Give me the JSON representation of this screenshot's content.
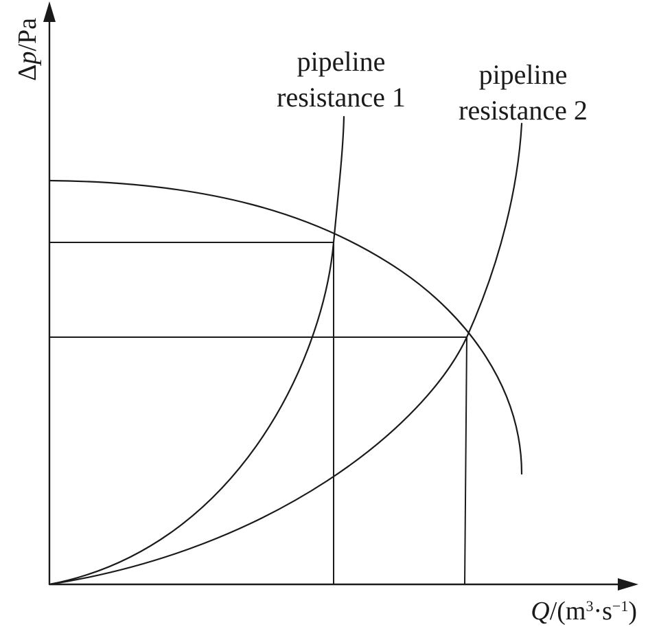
{
  "axes": {
    "y_label": {
      "prefix": "Δ",
      "variable": "p",
      "unit": "/Pa"
    },
    "x_label": {
      "variable": "Q",
      "unit_prefix": "/(m",
      "unit_exp1": "3",
      "unit_mid": "·s",
      "unit_exp2": "−1",
      "unit_suffix": ")"
    }
  },
  "curves": {
    "resistance_1": {
      "line1": "pipeline",
      "line2": "resistance 1"
    },
    "resistance_2": {
      "line1": "pipeline",
      "line2": "resistance 2"
    }
  }
}
